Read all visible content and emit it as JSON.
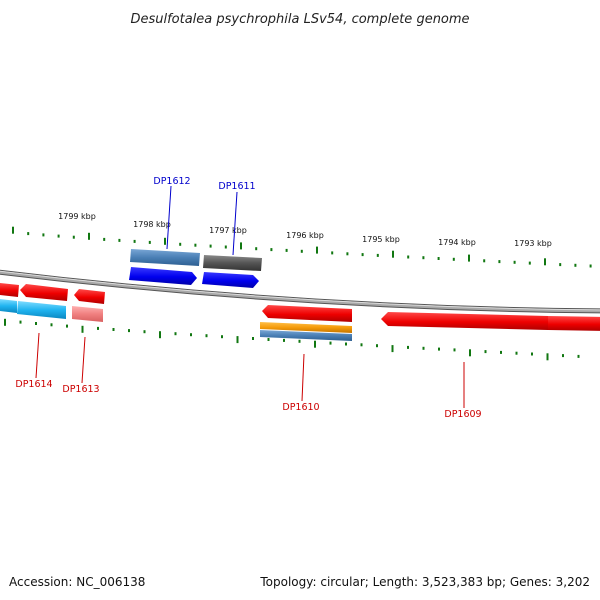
{
  "title": "Desulfotalea psychrophila LSv54, complete genome",
  "footer": {
    "accession": "Accession: NC_006138",
    "topology": "Topology: circular; Length: 3,523,383 bp; Genes: 3,202"
  },
  "scale_labels": [
    "1799 kbp",
    "1798 kbp",
    "1797 kbp",
    "1796 kbp",
    "1795 kbp",
    "1794 kbp",
    "1793 kbp"
  ],
  "genes": {
    "dp1612": "DP1612",
    "dp1611": "DP1611",
    "dp1614": "DP1614",
    "dp1613": "DP1613",
    "dp1610": "DP1610",
    "dp1609": "DP1609"
  },
  "colors": {
    "forward_label": "#0000cc",
    "reverse_label": "#cc0000",
    "scale_ticks": "#117711",
    "backbone": "#888888"
  }
}
